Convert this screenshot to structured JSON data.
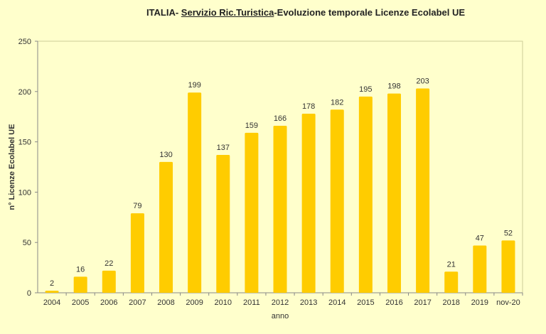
{
  "chart_data": {
    "type": "bar",
    "title_parts": {
      "prefix": "ITALIA- ",
      "underlined": "Servizio Ric.Turistica",
      "suffix": "-Evoluzione temporale  Licenze Ecolabel UE"
    },
    "xlabel": "anno",
    "ylabel": "n° Licenze  Ecolabel UE",
    "categories": [
      "2004",
      "2005",
      "2006",
      "2007",
      "2008",
      "2009",
      "2010",
      "2011",
      "2012",
      "2013",
      "2014",
      "2015",
      "2016",
      "2017",
      "2018",
      "2019",
      "nov-20"
    ],
    "values": [
      2,
      16,
      22,
      79,
      130,
      199,
      137,
      159,
      166,
      178,
      182,
      195,
      198,
      203,
      21,
      47,
      52
    ],
    "ylim": [
      0,
      250
    ],
    "yticks": [
      0,
      50,
      100,
      150,
      200,
      250
    ],
    "grid": false,
    "legend": "none",
    "colors": {
      "bar": "#FFCC00",
      "background": "#FFFFCC",
      "axis": "#888888"
    }
  }
}
